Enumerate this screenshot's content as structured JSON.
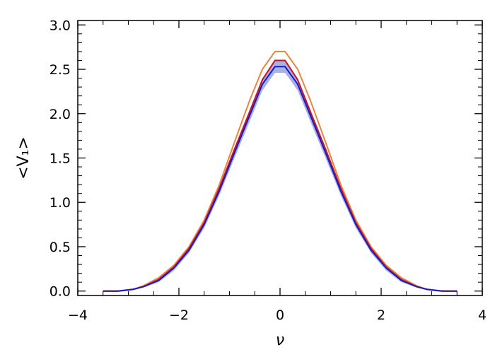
{
  "chart_data": {
    "type": "line",
    "xlabel": "ν",
    "ylabel": "<V₁>",
    "xlim": [
      -4,
      4
    ],
    "ylim": [
      -0.05,
      3.05
    ],
    "xticks": [
      -4,
      -2,
      0,
      2,
      4
    ],
    "xtick_labels": [
      "−4",
      "−2",
      "0",
      "2",
      "4"
    ],
    "yticks": [
      0.0,
      0.5,
      1.0,
      1.5,
      2.0,
      2.5,
      3.0
    ],
    "ytick_labels": [
      "0.0",
      "0.5",
      "1.0",
      "1.5",
      "2.0",
      "2.5",
      "3.0"
    ],
    "grid": false,
    "x": [
      -3.5,
      -3.2,
      -2.9,
      -2.7,
      -2.4,
      -2.1,
      -1.8,
      -1.5,
      -1.2,
      -0.9,
      -0.6,
      -0.35,
      -0.1,
      0.1,
      0.35,
      0.6,
      0.9,
      1.2,
      1.5,
      1.8,
      2.1,
      2.4,
      2.7,
      2.9,
      3.2,
      3.5
    ],
    "series": [
      {
        "color": "#e8853d",
        "values": [
          0.0,
          0.0,
          0.02,
          0.06,
          0.15,
          0.29,
          0.5,
          0.8,
          1.2,
          1.68,
          2.15,
          2.5,
          2.7,
          2.7,
          2.5,
          2.15,
          1.68,
          1.2,
          0.8,
          0.5,
          0.29,
          0.15,
          0.06,
          0.02,
          0.0,
          0.0
        ]
      },
      {
        "color": "#cc1122",
        "values": [
          0.0,
          0.0,
          0.02,
          0.05,
          0.13,
          0.27,
          0.48,
          0.77,
          1.16,
          1.6,
          2.02,
          2.38,
          2.6,
          2.6,
          2.38,
          2.02,
          1.6,
          1.16,
          0.77,
          0.48,
          0.27,
          0.13,
          0.05,
          0.02,
          0.0,
          0.0
        ]
      },
      {
        "color": "#1a1acc",
        "values": [
          0.0,
          0.0,
          0.02,
          0.05,
          0.12,
          0.26,
          0.46,
          0.75,
          1.13,
          1.56,
          1.98,
          2.33,
          2.53,
          2.53,
          2.33,
          1.98,
          1.56,
          1.13,
          0.75,
          0.46,
          0.26,
          0.12,
          0.05,
          0.02,
          0.0,
          0.0
        ],
        "band_lower": [
          0.0,
          0.0,
          0.01,
          0.04,
          0.1,
          0.23,
          0.43,
          0.71,
          1.08,
          1.5,
          1.91,
          2.26,
          2.46,
          2.46,
          2.26,
          1.91,
          1.5,
          1.08,
          0.71,
          0.43,
          0.23,
          0.1,
          0.04,
          0.01,
          0.0,
          0.0
        ],
        "band_upper": [
          0.0,
          0.01,
          0.03,
          0.06,
          0.14,
          0.29,
          0.49,
          0.79,
          1.18,
          1.62,
          2.05,
          2.4,
          2.6,
          2.6,
          2.4,
          2.05,
          1.62,
          1.18,
          0.79,
          0.49,
          0.29,
          0.14,
          0.06,
          0.03,
          0.01,
          0.0
        ],
        "band_color": "#9aa6dd"
      }
    ]
  }
}
